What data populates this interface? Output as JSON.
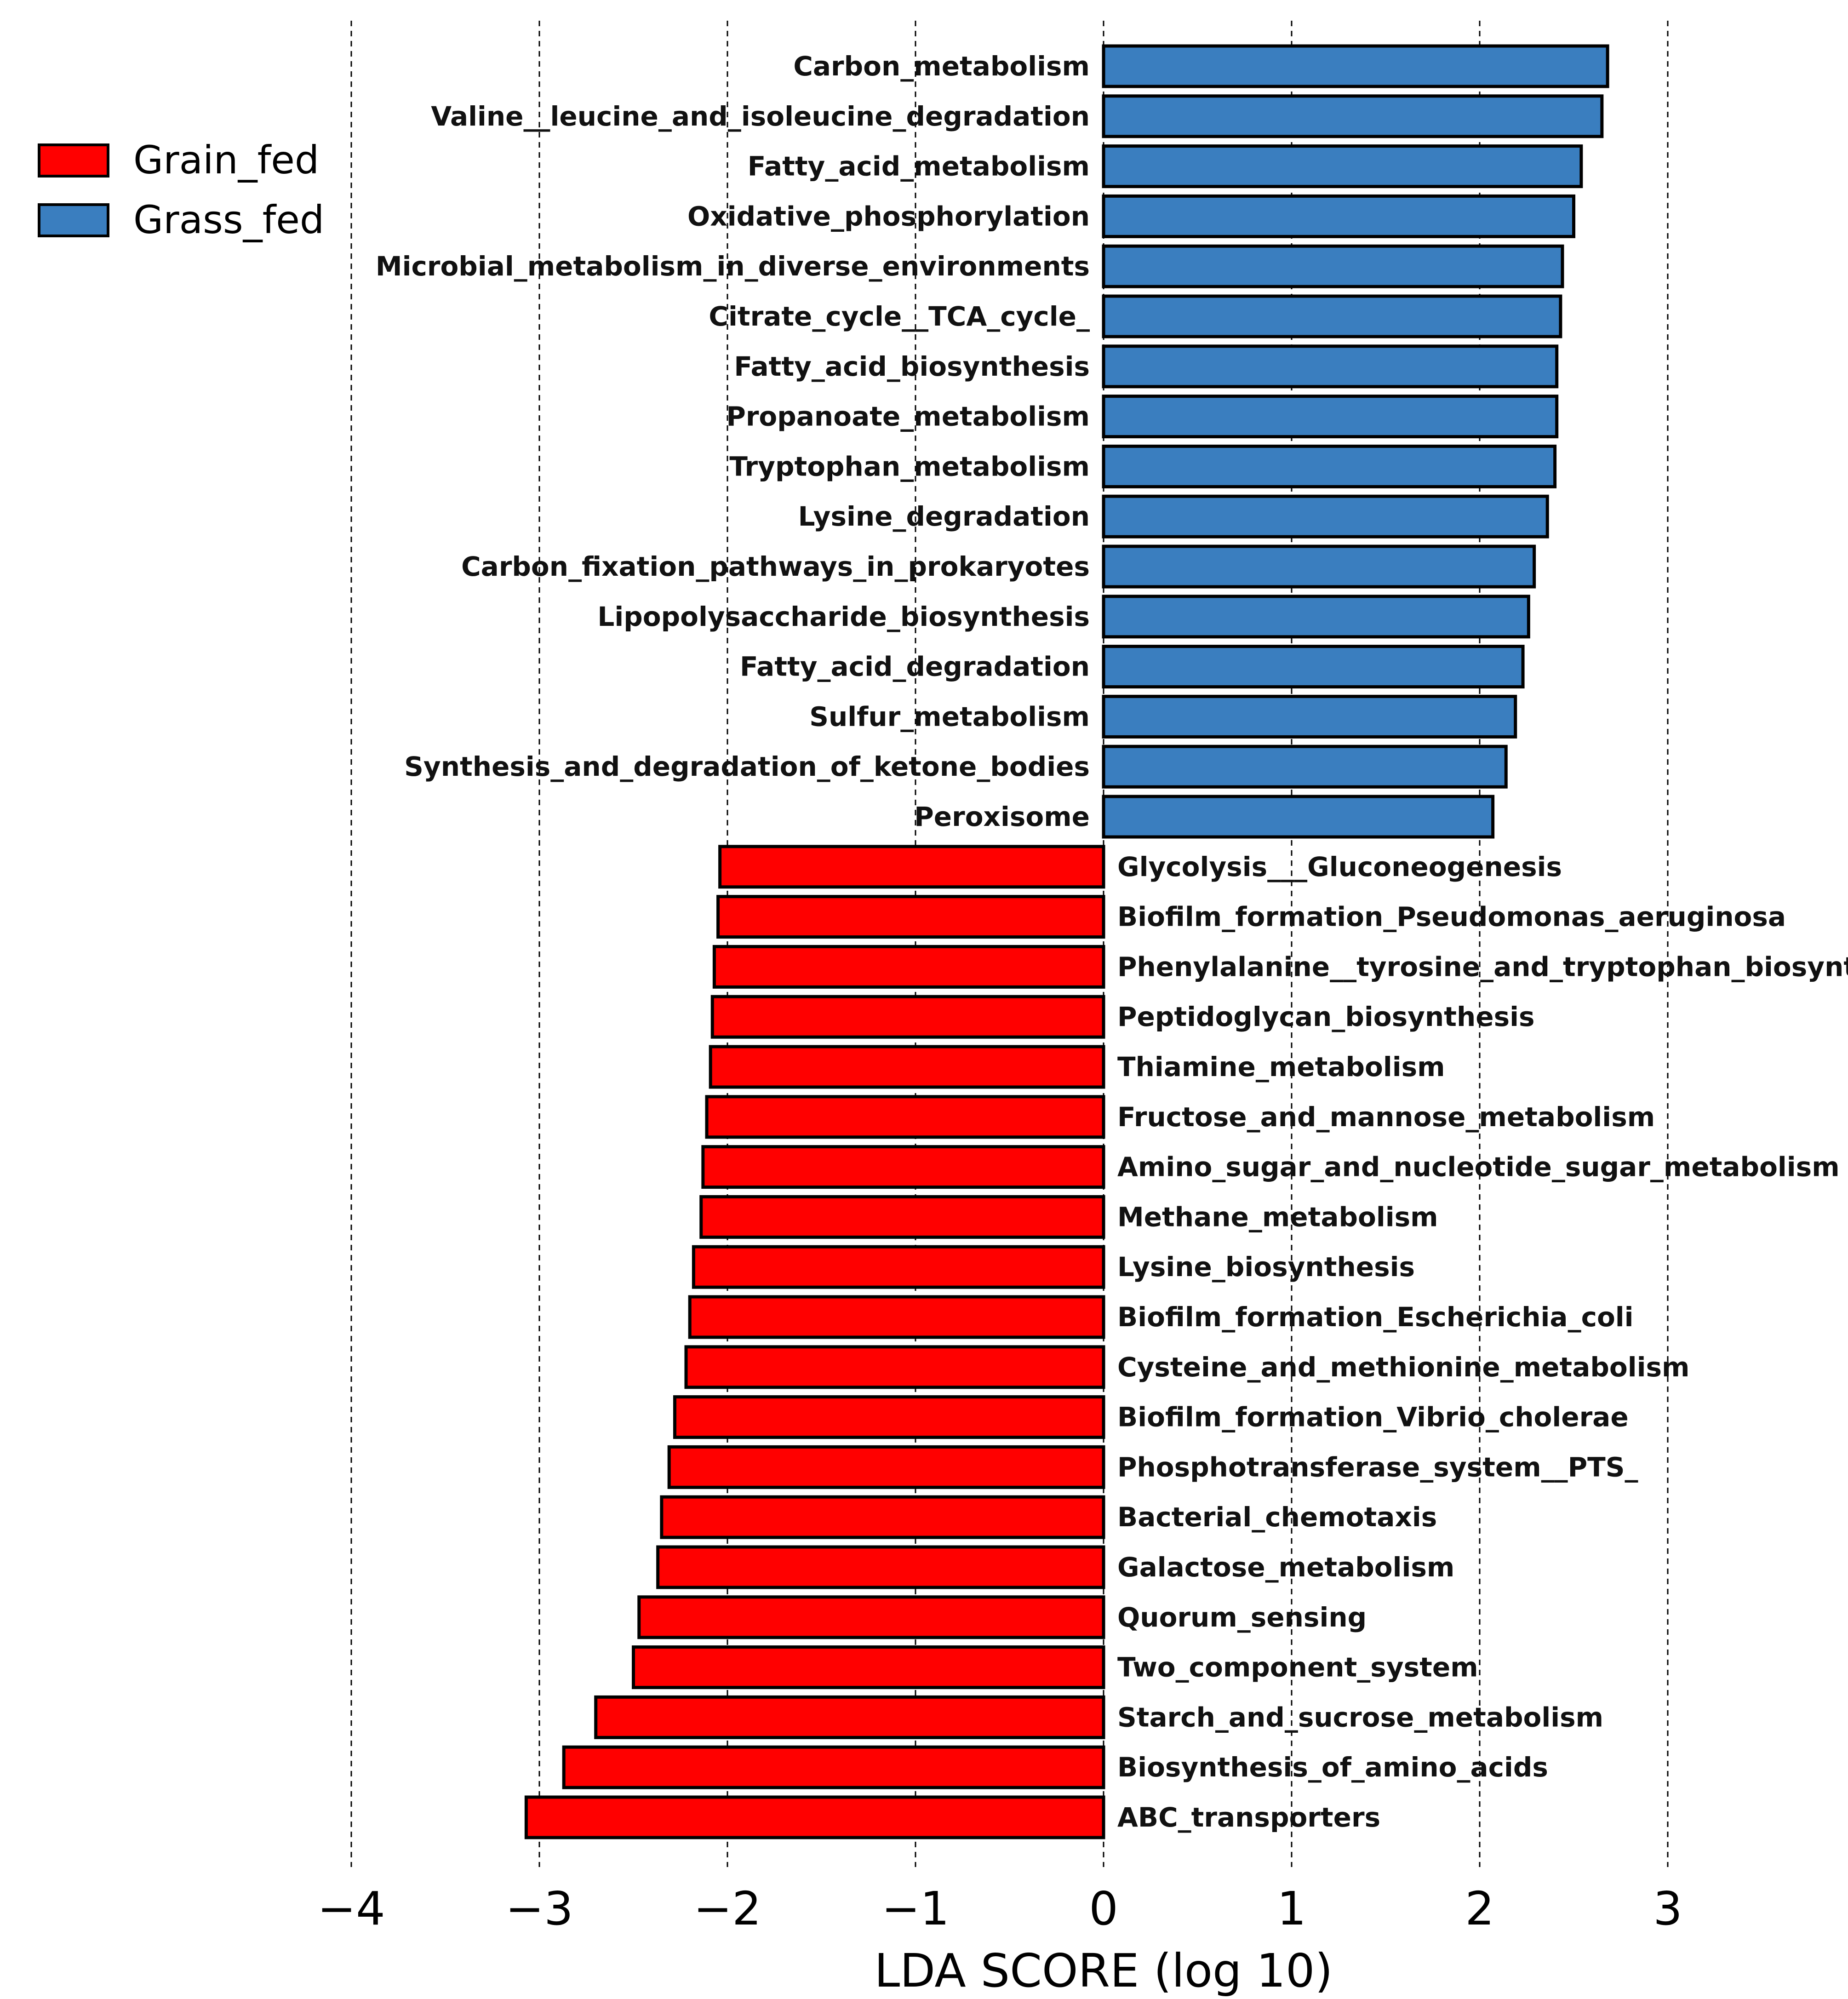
{
  "chart_data": {
    "type": "bar",
    "orientation": "horizontal",
    "title": "",
    "xlabel": "LDA SCORE (log 10)",
    "ylabel": "",
    "xlim": [
      -4,
      3
    ],
    "xticks": [
      -4,
      -3,
      -2,
      -1,
      0,
      1,
      2,
      3
    ],
    "xtick_labels": [
      "−4",
      "−3",
      "−2",
      "−1",
      "0",
      "1",
      "2",
      "3"
    ],
    "grid": "vertical dashed",
    "legend_position": "top-left",
    "legend": [
      {
        "name": "Grain_fed",
        "color": "#ff0000"
      },
      {
        "name": "Grass_fed",
        "color": "#3a7ebf"
      }
    ],
    "series": [
      {
        "name": "Grass_fed",
        "color": "#3a7ebf",
        "items": [
          {
            "label": "Carbon_metabolism",
            "value": 2.68
          },
          {
            "label": "Valine__leucine_and_isoleucine_degradation",
            "value": 2.65
          },
          {
            "label": "Fatty_acid_metabolism",
            "value": 2.54
          },
          {
            "label": "Oxidative_phosphorylation",
            "value": 2.5
          },
          {
            "label": "Microbial_metabolism_in_diverse_environments",
            "value": 2.44
          },
          {
            "label": "Citrate_cycle__TCA_cycle_",
            "value": 2.43
          },
          {
            "label": "Fatty_acid_biosynthesis",
            "value": 2.41
          },
          {
            "label": "Propanoate_metabolism",
            "value": 2.41
          },
          {
            "label": "Tryptophan_metabolism",
            "value": 2.4
          },
          {
            "label": "Lysine_degradation",
            "value": 2.36
          },
          {
            "label": "Carbon_fixation_pathways_in_prokaryotes",
            "value": 2.29
          },
          {
            "label": "Lipopolysaccharide_biosynthesis",
            "value": 2.26
          },
          {
            "label": "Fatty_acid_degradation",
            "value": 2.23
          },
          {
            "label": "Sulfur_metabolism",
            "value": 2.19
          },
          {
            "label": "Synthesis_and_degradation_of_ketone_bodies",
            "value": 2.14
          },
          {
            "label": "Peroxisome",
            "value": 2.07
          }
        ]
      },
      {
        "name": "Grain_fed",
        "color": "#ff0000",
        "items": [
          {
            "label": "Glycolysis___Gluconeogenesis",
            "value": -2.04
          },
          {
            "label": "Biofilm_formation_Pseudomonas_aeruginosa",
            "value": -2.05
          },
          {
            "label": "Phenylalanine__tyrosine_and_tryptophan_biosynthesis",
            "value": -2.07
          },
          {
            "label": "Peptidoglycan_biosynthesis",
            "value": -2.08
          },
          {
            "label": "Thiamine_metabolism",
            "value": -2.09
          },
          {
            "label": "Fructose_and_mannose_metabolism",
            "value": -2.11
          },
          {
            "label": "Amino_sugar_and_nucleotide_sugar_metabolism",
            "value": -2.13
          },
          {
            "label": "Methane_metabolism",
            "value": -2.14
          },
          {
            "label": "Lysine_biosynthesis",
            "value": -2.18
          },
          {
            "label": "Biofilm_formation_Escherichia_coli",
            "value": -2.2
          },
          {
            "label": "Cysteine_and_methionine_metabolism",
            "value": -2.22
          },
          {
            "label": "Biofilm_formation_Vibrio_cholerae",
            "value": -2.28
          },
          {
            "label": "Phosphotransferase_system__PTS_",
            "value": -2.31
          },
          {
            "label": "Bacterial_chemotaxis",
            "value": -2.35
          },
          {
            "label": "Galactose_metabolism",
            "value": -2.37
          },
          {
            "label": "Quorum_sensing",
            "value": -2.47
          },
          {
            "label": "Two_component_system",
            "value": -2.5
          },
          {
            "label": "Starch_and_sucrose_metabolism",
            "value": -2.7
          },
          {
            "label": "Biosynthesis_of_amino_acids",
            "value": -2.87
          },
          {
            "label": "ABC_transporters",
            "value": -3.07
          }
        ]
      }
    ]
  }
}
